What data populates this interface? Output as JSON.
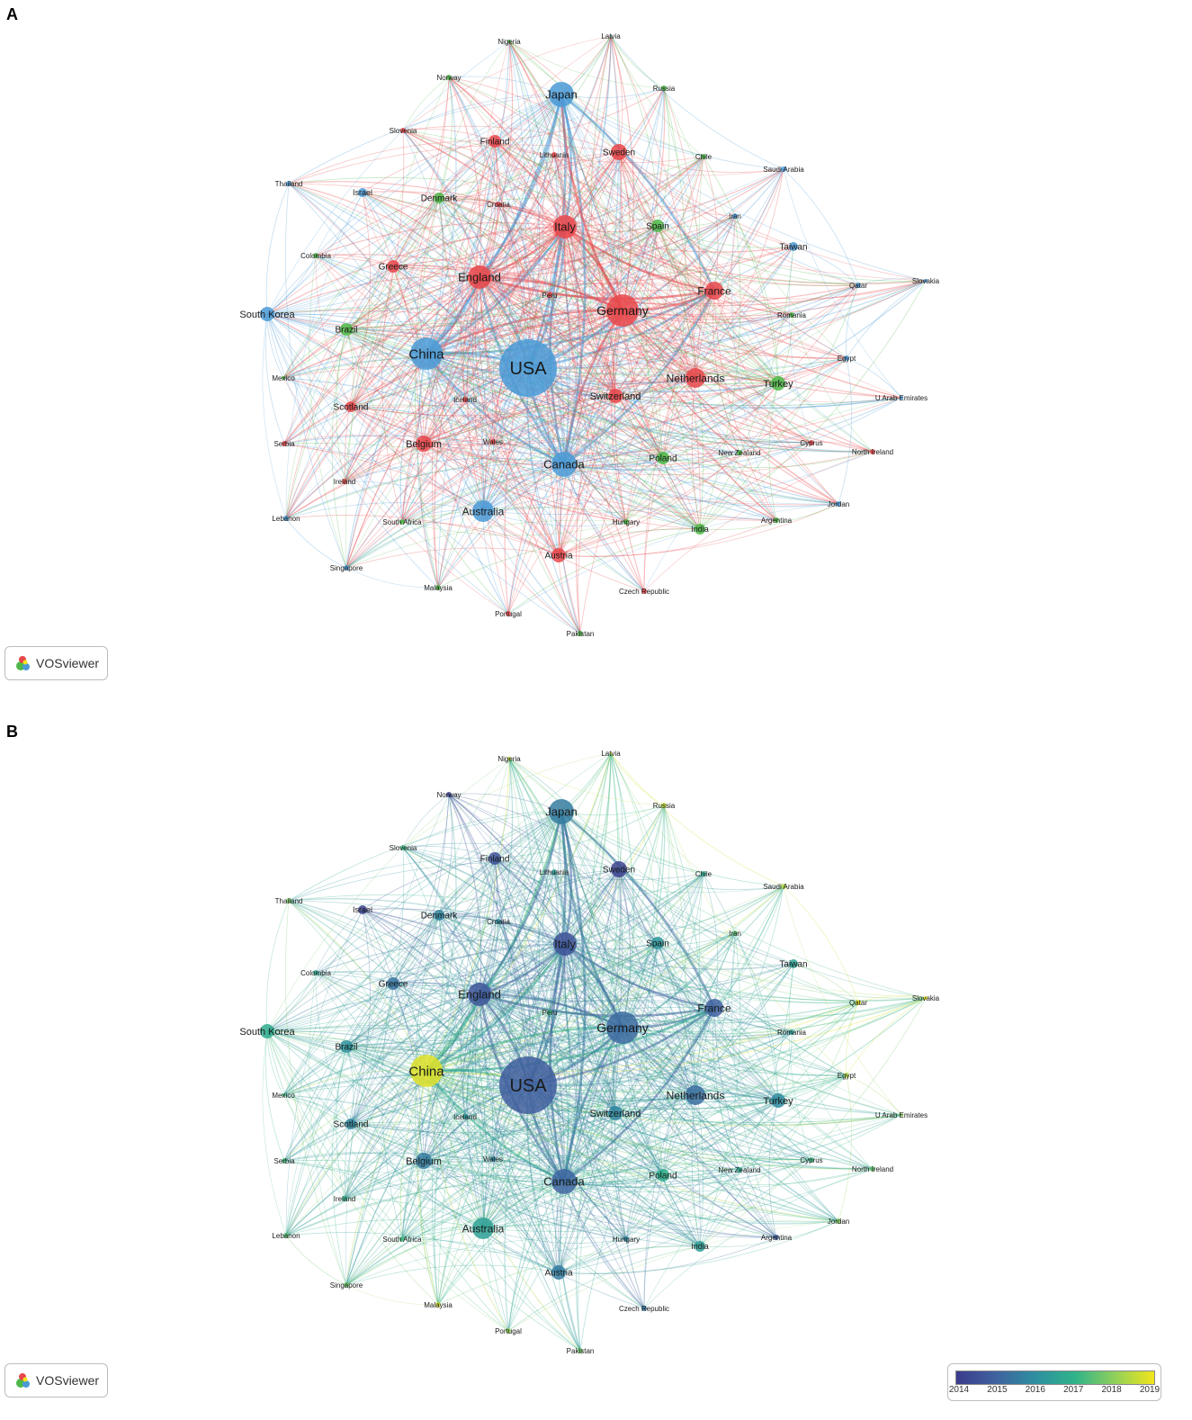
{
  "panel_a": {
    "letter": "A"
  },
  "panel_b": {
    "letter": "B"
  },
  "logo": {
    "label": "VOSviewer",
    "icon": "vosviewer-logo-icon"
  },
  "legend": {
    "ticks": [
      "2014",
      "2015",
      "2016",
      "2017",
      "2018",
      "2019"
    ],
    "colors": [
      "#3b3b8c",
      "#3f62a0",
      "#2e8fa0",
      "#2fb38a",
      "#8fd05c",
      "#f2e51a"
    ]
  },
  "cluster_colors": {
    "red": "#e8474a",
    "green": "#4db848",
    "blue": "#4a9ad6"
  },
  "nodes": [
    {
      "label": "Nigeria",
      "cluster": "green",
      "year": 2018.6
    },
    {
      "label": "Latvia",
      "cluster": "blue",
      "year": 2019.0
    },
    {
      "label": "Norway",
      "cluster": "green",
      "year": 2014.3
    },
    {
      "label": "Japan",
      "cluster": "blue",
      "year": 2015.6
    },
    {
      "label": "Russia",
      "cluster": "green",
      "year": 2018.5
    },
    {
      "label": "Slovenia",
      "cluster": "red",
      "year": 2017.2
    },
    {
      "label": "Finland",
      "cluster": "red",
      "year": 2014.6
    },
    {
      "label": "Lithuania",
      "cluster": "red",
      "year": 2016.5
    },
    {
      "label": "Sweden",
      "cluster": "red",
      "year": 2014.2
    },
    {
      "label": "Chile",
      "cluster": "green",
      "year": 2016.8
    },
    {
      "label": "Saudi Arabia",
      "cluster": "blue",
      "year": 2018.3
    },
    {
      "label": "Thailand",
      "cluster": "blue",
      "year": 2017.8
    },
    {
      "label": "Israel",
      "cluster": "blue",
      "year": 2014.2
    },
    {
      "label": "Denmark",
      "cluster": "green",
      "year": 2015.8
    },
    {
      "label": "Croatia",
      "cluster": "red",
      "year": 2016.0
    },
    {
      "label": "Italy",
      "cluster": "red",
      "year": 2014.6
    },
    {
      "label": "Spain",
      "cluster": "green",
      "year": 2016.2
    },
    {
      "label": "Iran",
      "cluster": "blue",
      "year": 2017.5
    },
    {
      "label": "Taiwan",
      "cluster": "blue",
      "year": 2016.6
    },
    {
      "label": "Colombia",
      "cluster": "green",
      "year": 2016.8
    },
    {
      "label": "Greece",
      "cluster": "red",
      "year": 2015.4
    },
    {
      "label": "England",
      "cluster": "red",
      "year": 2014.7
    },
    {
      "label": "Qatar",
      "cluster": "blue",
      "year": 2018.9
    },
    {
      "label": "Slovakia",
      "cluster": "blue",
      "year": 2019.0
    },
    {
      "label": "France",
      "cluster": "red",
      "year": 2015.0
    },
    {
      "label": "Peru",
      "cluster": "red",
      "year": 2017.2
    },
    {
      "label": "Germany",
      "cluster": "red",
      "year": 2015.2
    },
    {
      "label": "South Korea",
      "cluster": "blue",
      "year": 2016.8
    },
    {
      "label": "Romania",
      "cluster": "green",
      "year": 2016.5
    },
    {
      "label": "Brazil",
      "cluster": "green",
      "year": 2016.1
    },
    {
      "label": "China",
      "cluster": "blue",
      "year": 2018.8
    },
    {
      "label": "USA",
      "cluster": "blue",
      "year": 2014.9
    },
    {
      "label": "Egypt",
      "cluster": "blue",
      "year": 2018.3
    },
    {
      "label": "Mexico",
      "cluster": "green",
      "year": 2017.4
    },
    {
      "label": "Netherlands",
      "cluster": "red",
      "year": 2015.3
    },
    {
      "label": "Turkey",
      "cluster": "green",
      "year": 2015.9
    },
    {
      "label": "U Arab Emirates",
      "cluster": "blue",
      "year": 2018.0
    },
    {
      "label": "Iceland",
      "cluster": "red",
      "year": 2016.2
    },
    {
      "label": "Switzerland",
      "cluster": "red",
      "year": 2015.8
    },
    {
      "label": "Scotland",
      "cluster": "red",
      "year": 2015.8
    },
    {
      "label": "Serbia",
      "cluster": "red",
      "year": 2017.3
    },
    {
      "label": "Belgium",
      "cluster": "red",
      "year": 2015.6
    },
    {
      "label": "Wales",
      "cluster": "red",
      "year": 2015.9
    },
    {
      "label": "Cyprus",
      "cluster": "red",
      "year": 2017.2
    },
    {
      "label": "Canada",
      "cluster": "blue",
      "year": 2015.1
    },
    {
      "label": "Poland",
      "cluster": "green",
      "year": 2016.9
    },
    {
      "label": "New Zealand",
      "cluster": "green",
      "year": 2016.7
    },
    {
      "label": "North Ireland",
      "cluster": "red",
      "year": 2017.6
    },
    {
      "label": "Ireland",
      "cluster": "red",
      "year": 2017.0
    },
    {
      "label": "Lebanon",
      "cluster": "blue",
      "year": 2017.5
    },
    {
      "label": "South Africa",
      "cluster": "green",
      "year": 2017.2
    },
    {
      "label": "Australia",
      "cluster": "blue",
      "year": 2016.5
    },
    {
      "label": "Hungary",
      "cluster": "green",
      "year": 2015.7
    },
    {
      "label": "India",
      "cluster": "green",
      "year": 2016.4
    },
    {
      "label": "Argentina",
      "cluster": "green",
      "year": 2014.8
    },
    {
      "label": "Jordan",
      "cluster": "blue",
      "year": 2017.9
    },
    {
      "label": "Austria",
      "cluster": "red",
      "year": 2015.6
    },
    {
      "label": "Singapore",
      "cluster": "blue",
      "year": 2017.7
    },
    {
      "label": "Czech Republic",
      "cluster": "red",
      "year": 2015.5
    },
    {
      "label": "Malaysia",
      "cluster": "green",
      "year": 2018.7
    },
    {
      "label": "Portugal",
      "cluster": "red",
      "year": 2018.0
    },
    {
      "label": "Pakistan",
      "cluster": "green",
      "year": 2017.7
    }
  ]
}
